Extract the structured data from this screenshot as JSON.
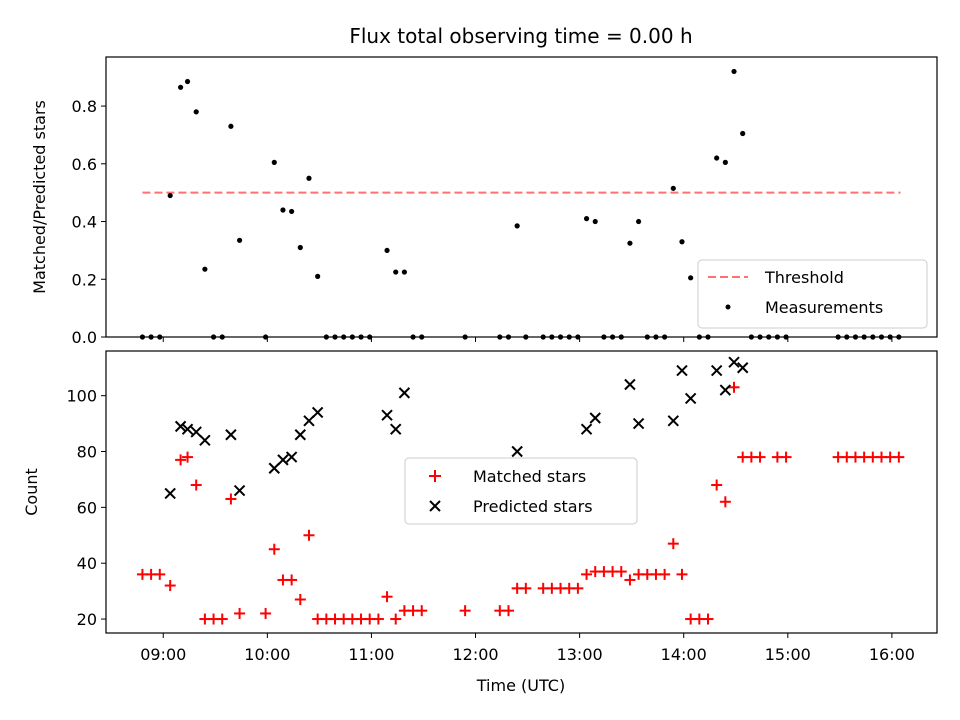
{
  "chart_data": [
    {
      "type": "scatter",
      "panel": "top",
      "title": "Flux total observing time = 0.00 h",
      "xlabel": "",
      "ylabel": "Matched/Predicted stars",
      "xlim": [
        "08:27",
        "16:26"
      ],
      "ylim": [
        0,
        0.97
      ],
      "yticks": [
        "0.0",
        "0.2",
        "0.4",
        "0.6",
        "0.8"
      ],
      "yticks_values": [
        0,
        0.2,
        0.4,
        0.6,
        0.8
      ],
      "grid": false,
      "legend": "lower-right",
      "series": [
        {
          "name": "Threshold",
          "kind": "dashed-line",
          "color": "#ff7070",
          "x": [
            "08:48",
            "16:05"
          ],
          "y": [
            0.5,
            0.5
          ]
        },
        {
          "name": "Measurements",
          "kind": "points",
          "color": "#000000",
          "points": [
            [
              "08:48",
              0
            ],
            [
              "08:53",
              0
            ],
            [
              "08:58",
              0
            ],
            [
              "09:04",
              0.49
            ],
            [
              "09:10",
              0.865
            ],
            [
              "09:14",
              0.885
            ],
            [
              "09:19",
              0.78
            ],
            [
              "09:24",
              0.235
            ],
            [
              "09:29",
              0
            ],
            [
              "09:34",
              0
            ],
            [
              "09:39",
              0.73
            ],
            [
              "09:44",
              0.335
            ],
            [
              "09:59",
              0
            ],
            [
              "10:04",
              0.605
            ],
            [
              "10:09",
              0.44
            ],
            [
              "10:14",
              0.435
            ],
            [
              "10:19",
              0.31
            ],
            [
              "10:24",
              0.55
            ],
            [
              "10:29",
              0.21
            ],
            [
              "10:34",
              0
            ],
            [
              "10:39",
              0
            ],
            [
              "10:44",
              0
            ],
            [
              "10:49",
              0
            ],
            [
              "10:54",
              0
            ],
            [
              "10:59",
              0
            ],
            [
              "11:09",
              0.3
            ],
            [
              "11:14",
              0.225
            ],
            [
              "11:19",
              0.225
            ],
            [
              "11:24",
              0
            ],
            [
              "11:29",
              0
            ],
            [
              "11:54",
              0
            ],
            [
              "12:14",
              0
            ],
            [
              "12:19",
              0
            ],
            [
              "12:24",
              0.385
            ],
            [
              "12:29",
              0
            ],
            [
              "12:39",
              0
            ],
            [
              "12:44",
              0
            ],
            [
              "12:49",
              0
            ],
            [
              "12:54",
              0
            ],
            [
              "12:59",
              0
            ],
            [
              "13:04",
              0.41
            ],
            [
              "13:09",
              0.4
            ],
            [
              "13:14",
              0
            ],
            [
              "13:19",
              0
            ],
            [
              "13:24",
              0
            ],
            [
              "13:29",
              0.325
            ],
            [
              "13:34",
              0.4
            ],
            [
              "13:39",
              0
            ],
            [
              "13:44",
              0
            ],
            [
              "13:49",
              0
            ],
            [
              "13:54",
              0.515
            ],
            [
              "13:59",
              0.33
            ],
            [
              "14:04",
              0.205
            ],
            [
              "14:09",
              0
            ],
            [
              "14:14",
              0
            ],
            [
              "14:19",
              0.62
            ],
            [
              "14:24",
              0.605
            ],
            [
              "14:29",
              0.92
            ],
            [
              "14:34",
              0.705
            ],
            [
              "14:39",
              0
            ],
            [
              "14:44",
              0
            ],
            [
              "14:49",
              0
            ],
            [
              "14:54",
              0
            ],
            [
              "14:59",
              0
            ],
            [
              "15:29",
              0
            ],
            [
              "15:34",
              0
            ],
            [
              "15:39",
              0
            ],
            [
              "15:44",
              0
            ],
            [
              "15:49",
              0
            ],
            [
              "15:54",
              0
            ],
            [
              "15:59",
              0
            ],
            [
              "16:04",
              0
            ]
          ]
        }
      ]
    },
    {
      "type": "scatter",
      "panel": "bottom",
      "title": "",
      "xlabel": "Time (UTC)",
      "ylabel": "Count",
      "xlim": [
        "08:27",
        "16:26"
      ],
      "ylim": [
        15,
        116
      ],
      "xticks": [
        "09:00",
        "10:00",
        "11:00",
        "12:00",
        "13:00",
        "14:00",
        "15:00",
        "16:00"
      ],
      "yticks": [
        "20",
        "40",
        "60",
        "80",
        "100"
      ],
      "yticks_values": [
        20,
        40,
        60,
        80,
        100
      ],
      "grid": false,
      "legend": "center",
      "series": [
        {
          "name": "Matched stars",
          "marker": "plus",
          "color": "#ff0000",
          "points": [
            [
              "08:48",
              36
            ],
            [
              "08:53",
              36
            ],
            [
              "08:58",
              36
            ],
            [
              "09:04",
              32
            ],
            [
              "09:10",
              77
            ],
            [
              "09:14",
              78
            ],
            [
              "09:19",
              68
            ],
            [
              "09:24",
              20
            ],
            [
              "09:29",
              20
            ],
            [
              "09:34",
              20
            ],
            [
              "09:39",
              63
            ],
            [
              "09:44",
              22
            ],
            [
              "09:59",
              22
            ],
            [
              "10:04",
              45
            ],
            [
              "10:09",
              34
            ],
            [
              "10:14",
              34
            ],
            [
              "10:19",
              27
            ],
            [
              "10:24",
              50
            ],
            [
              "10:29",
              20
            ],
            [
              "10:34",
              20
            ],
            [
              "10:39",
              20
            ],
            [
              "10:44",
              20
            ],
            [
              "10:49",
              20
            ],
            [
              "10:54",
              20
            ],
            [
              "10:59",
              20
            ],
            [
              "11:04",
              20
            ],
            [
              "11:09",
              28
            ],
            [
              "11:14",
              20
            ],
            [
              "11:19",
              23
            ],
            [
              "11:24",
              23
            ],
            [
              "11:29",
              23
            ],
            [
              "11:54",
              23
            ],
            [
              "12:14",
              23
            ],
            [
              "12:19",
              23
            ],
            [
              "12:24",
              31
            ],
            [
              "12:29",
              31
            ],
            [
              "12:39",
              31
            ],
            [
              "12:44",
              31
            ],
            [
              "12:49",
              31
            ],
            [
              "12:54",
              31
            ],
            [
              "12:59",
              31
            ],
            [
              "13:04",
              36
            ],
            [
              "13:09",
              37
            ],
            [
              "13:14",
              37
            ],
            [
              "13:19",
              37
            ],
            [
              "13:24",
              37
            ],
            [
              "13:29",
              34
            ],
            [
              "13:34",
              36
            ],
            [
              "13:39",
              36
            ],
            [
              "13:44",
              36
            ],
            [
              "13:49",
              36
            ],
            [
              "13:54",
              47
            ],
            [
              "13:59",
              36
            ],
            [
              "14:04",
              20
            ],
            [
              "14:09",
              20
            ],
            [
              "14:14",
              20
            ],
            [
              "14:19",
              68
            ],
            [
              "14:24",
              62
            ],
            [
              "14:29",
              103
            ],
            [
              "14:34",
              78
            ],
            [
              "14:39",
              78
            ],
            [
              "14:44",
              78
            ],
            [
              "14:54",
              78
            ],
            [
              "14:59",
              78
            ],
            [
              "15:29",
              78
            ],
            [
              "15:34",
              78
            ],
            [
              "15:39",
              78
            ],
            [
              "15:44",
              78
            ],
            [
              "15:49",
              78
            ],
            [
              "15:54",
              78
            ],
            [
              "15:59",
              78
            ],
            [
              "16:04",
              78
            ]
          ]
        },
        {
          "name": "Predicted stars",
          "marker": "x",
          "color": "#000000",
          "points": [
            [
              "09:04",
              65
            ],
            [
              "09:10",
              89
            ],
            [
              "09:14",
              88
            ],
            [
              "09:19",
              87
            ],
            [
              "09:24",
              84
            ],
            [
              "09:39",
              86
            ],
            [
              "09:44",
              66
            ],
            [
              "10:04",
              74
            ],
            [
              "10:09",
              77
            ],
            [
              "10:14",
              78
            ],
            [
              "10:19",
              86
            ],
            [
              "10:24",
              91
            ],
            [
              "10:29",
              94
            ],
            [
              "11:09",
              93
            ],
            [
              "11:14",
              88
            ],
            [
              "11:19",
              101
            ],
            [
              "12:24",
              80
            ],
            [
              "13:04",
              88
            ],
            [
              "13:09",
              92
            ],
            [
              "13:29",
              104
            ],
            [
              "13:34",
              90
            ],
            [
              "13:54",
              91
            ],
            [
              "13:59",
              109
            ],
            [
              "14:04",
              99
            ],
            [
              "14:19",
              109
            ],
            [
              "14:24",
              102
            ],
            [
              "14:29",
              112
            ],
            [
              "14:34",
              110
            ]
          ]
        }
      ]
    }
  ]
}
